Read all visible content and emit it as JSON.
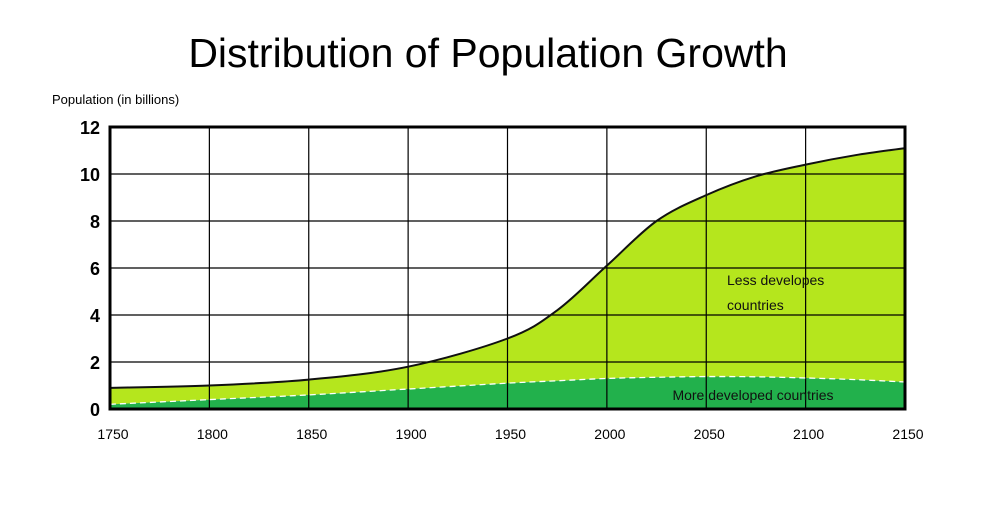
{
  "chart_data": {
    "type": "area",
    "title": "Distribution of Population Growth",
    "ylabel": "Population (in billions)",
    "xlabel": "",
    "xlim": [
      1750,
      2150
    ],
    "ylim": [
      0,
      12
    ],
    "x_ticks": [
      1750,
      1800,
      1850,
      1900,
      1950,
      2000,
      2050,
      2100,
      2150
    ],
    "y_ticks": [
      0,
      2,
      4,
      6,
      8,
      10,
      12
    ],
    "grid": true,
    "stacked": true,
    "x": [
      1750,
      1800,
      1850,
      1900,
      1950,
      1975,
      2000,
      2025,
      2050,
      2075,
      2100,
      2125,
      2150
    ],
    "series": [
      {
        "name": "More developed countries",
        "color": "#22b14c",
        "values": [
          0.2,
          0.4,
          0.6,
          0.85,
          1.1,
          1.2,
          1.3,
          1.35,
          1.38,
          1.37,
          1.32,
          1.25,
          1.15
        ]
      },
      {
        "name": "Less developes countries",
        "label_lines": [
          "Less developes",
          "countries"
        ],
        "color": "#b5e61d",
        "total_values": [
          0.9,
          1.0,
          1.25,
          1.8,
          3.0,
          4.2,
          6.1,
          8.0,
          9.1,
          9.9,
          10.4,
          10.8,
          11.1
        ]
      }
    ]
  }
}
